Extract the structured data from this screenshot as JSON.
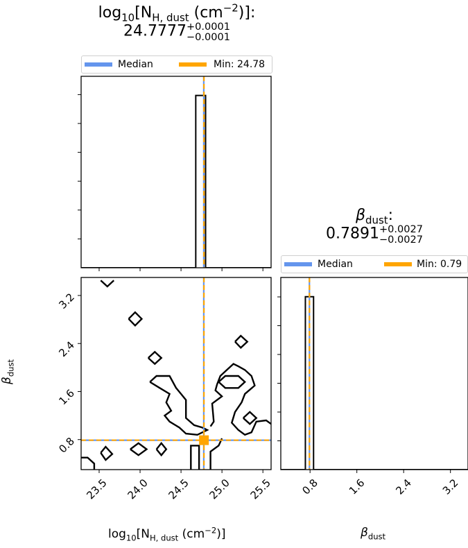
{
  "panels": {
    "nh": {
      "title": {
        "prefix": "log",
        "sub_base": "10",
        "bracket_open": "[N",
        "sub_var": "H, dust",
        "units_open": " (cm",
        "sup_exp": "−2",
        "units_close": ")]:",
        "value": "24.7777",
        "err_plus": "+0.0001",
        "err_minus": "−0.0001"
      },
      "legend": {
        "median_label": "Median",
        "min_label": "Min: 24.78"
      }
    },
    "beta": {
      "title": {
        "symbol": "β",
        "sub_var": "dust",
        "suffix": ":",
        "value": "0.7891",
        "err_plus": "+0.0027",
        "err_minus": "−0.0027"
      },
      "legend": {
        "median_label": "Median",
        "min_label": "Min: 0.79"
      }
    }
  },
  "axis_labels": {
    "x_nh": {
      "prefix": "log",
      "sub_base": "10",
      "bracket_open": "[N",
      "sub_var": "H, dust",
      "units_open": " (cm",
      "sup_exp": "−2",
      "units_close": ")]"
    },
    "x_beta": {
      "symbol": "β",
      "sub_var": "dust"
    },
    "y_beta": {
      "symbol": "β",
      "sub_var": "dust"
    }
  },
  "chart_data": {
    "type": "corner",
    "colors": {
      "median": "#6495ed",
      "min": "#ffa500",
      "hist": "#000000"
    },
    "nh": {
      "range": [
        23.28,
        25.6
      ],
      "ticks": [
        23.5,
        24.0,
        24.5,
        25.0,
        25.5
      ],
      "tick_labels": [
        "23.5",
        "24.0",
        "24.5",
        "25.0",
        "25.5"
      ],
      "median": 24.7777,
      "min": 24.78,
      "hist_bins": [
        24.68,
        24.8
      ],
      "hist_counts": [
        1
      ]
    },
    "beta": {
      "range": [
        0.3,
        3.5
      ],
      "ticks": [
        0.8,
        1.6,
        2.4,
        3.2
      ],
      "tick_labels": [
        "0.8",
        "1.6",
        "2.4",
        "3.2"
      ],
      "median": 0.7891,
      "min": 0.79,
      "hist_bins": [
        0.72,
        0.86
      ],
      "hist_counts": [
        1
      ]
    },
    "joint": {
      "min_point": [
        24.78,
        0.79
      ],
      "contours": [
        [
          [
            23.52,
            3.45
          ],
          [
            23.6,
            3.35
          ],
          [
            23.68,
            3.45
          ]
        ],
        [
          [
            23.86,
            2.81
          ],
          [
            23.94,
            2.7
          ],
          [
            24.02,
            2.81
          ],
          [
            23.94,
            2.92
          ],
          [
            23.86,
            2.81
          ]
        ],
        [
          [
            24.1,
            2.16
          ],
          [
            24.18,
            2.06
          ],
          [
            24.26,
            2.16
          ],
          [
            24.18,
            2.26
          ],
          [
            24.1,
            2.16
          ]
        ],
        [
          [
            25.16,
            2.43
          ],
          [
            25.23,
            2.33
          ],
          [
            25.31,
            2.43
          ],
          [
            25.23,
            2.53
          ],
          [
            25.16,
            2.43
          ]
        ],
        [
          [
            25.26,
            1.16
          ],
          [
            25.34,
            1.06
          ],
          [
            25.42,
            1.16
          ],
          [
            25.34,
            1.26
          ],
          [
            25.26,
            1.16
          ]
        ],
        [
          [
            24.96,
            1.76
          ],
          [
            25.04,
            1.86
          ],
          [
            25.2,
            1.86
          ],
          [
            25.28,
            1.76
          ],
          [
            25.2,
            1.66
          ],
          [
            25.04,
            1.66
          ],
          [
            24.96,
            1.76
          ]
        ],
        [
          [
            24.86,
            1.02
          ],
          [
            24.9,
            1.1
          ],
          [
            24.88,
            1.4
          ],
          [
            25.0,
            1.52
          ],
          [
            24.92,
            1.62
          ],
          [
            24.94,
            1.72
          ],
          [
            24.98,
            1.86
          ],
          [
            25.06,
            1.96
          ],
          [
            25.14,
            2.06
          ],
          [
            25.2,
            2.02
          ],
          [
            25.28,
            1.96
          ],
          [
            25.36,
            1.86
          ],
          [
            25.4,
            1.7
          ],
          [
            25.28,
            1.56
          ],
          [
            25.24,
            1.42
          ],
          [
            25.16,
            1.26
          ],
          [
            25.12,
            1.08
          ],
          [
            25.2,
            0.96
          ],
          [
            25.28,
            0.88
          ],
          [
            25.36,
            0.92
          ],
          [
            25.42,
            1.1
          ],
          [
            25.54,
            1.12
          ],
          [
            25.6,
            1.06
          ]
        ],
        [
          [
            23.52,
            0.58
          ],
          [
            23.58,
            0.46
          ],
          [
            23.66,
            0.56
          ],
          [
            23.58,
            0.68
          ],
          [
            23.52,
            0.58
          ]
        ],
        [
          [
            23.88,
            0.64
          ],
          [
            23.98,
            0.54
          ],
          [
            24.08,
            0.64
          ],
          [
            23.98,
            0.74
          ],
          [
            23.88,
            0.64
          ]
        ],
        [
          [
            24.2,
            0.64
          ],
          [
            24.26,
            0.54
          ],
          [
            24.32,
            0.64
          ],
          [
            24.26,
            0.74
          ],
          [
            24.2,
            0.64
          ]
        ],
        [
          [
            24.12,
            1.76
          ],
          [
            24.2,
            1.86
          ],
          [
            24.36,
            1.86
          ],
          [
            24.44,
            1.66
          ],
          [
            24.5,
            1.56
          ],
          [
            24.56,
            1.46
          ],
          [
            24.56,
            1.16
          ],
          [
            24.66,
            1.04
          ],
          [
            24.76,
            1.0
          ],
          [
            24.82,
            0.96
          ],
          [
            24.7,
            0.88
          ],
          [
            24.56,
            0.9
          ],
          [
            24.48,
            1.0
          ],
          [
            24.36,
            1.1
          ],
          [
            24.3,
            1.2
          ],
          [
            24.38,
            1.28
          ],
          [
            24.32,
            1.42
          ],
          [
            24.36,
            1.56
          ],
          [
            24.24,
            1.66
          ],
          [
            24.12,
            1.76
          ]
        ],
        [
          [
            23.28,
            0.5
          ],
          [
            23.36,
            0.5
          ],
          [
            23.44,
            0.4
          ],
          [
            23.44,
            0.3
          ]
        ],
        [
          [
            24.62,
            0.3
          ],
          [
            24.62,
            0.7
          ],
          [
            24.72,
            0.7
          ],
          [
            24.72,
            0.3
          ]
        ],
        [
          [
            24.86,
            0.3
          ],
          [
            24.86,
            0.6
          ],
          [
            24.96,
            0.7
          ],
          [
            25.0,
            0.82
          ]
        ]
      ]
    }
  }
}
